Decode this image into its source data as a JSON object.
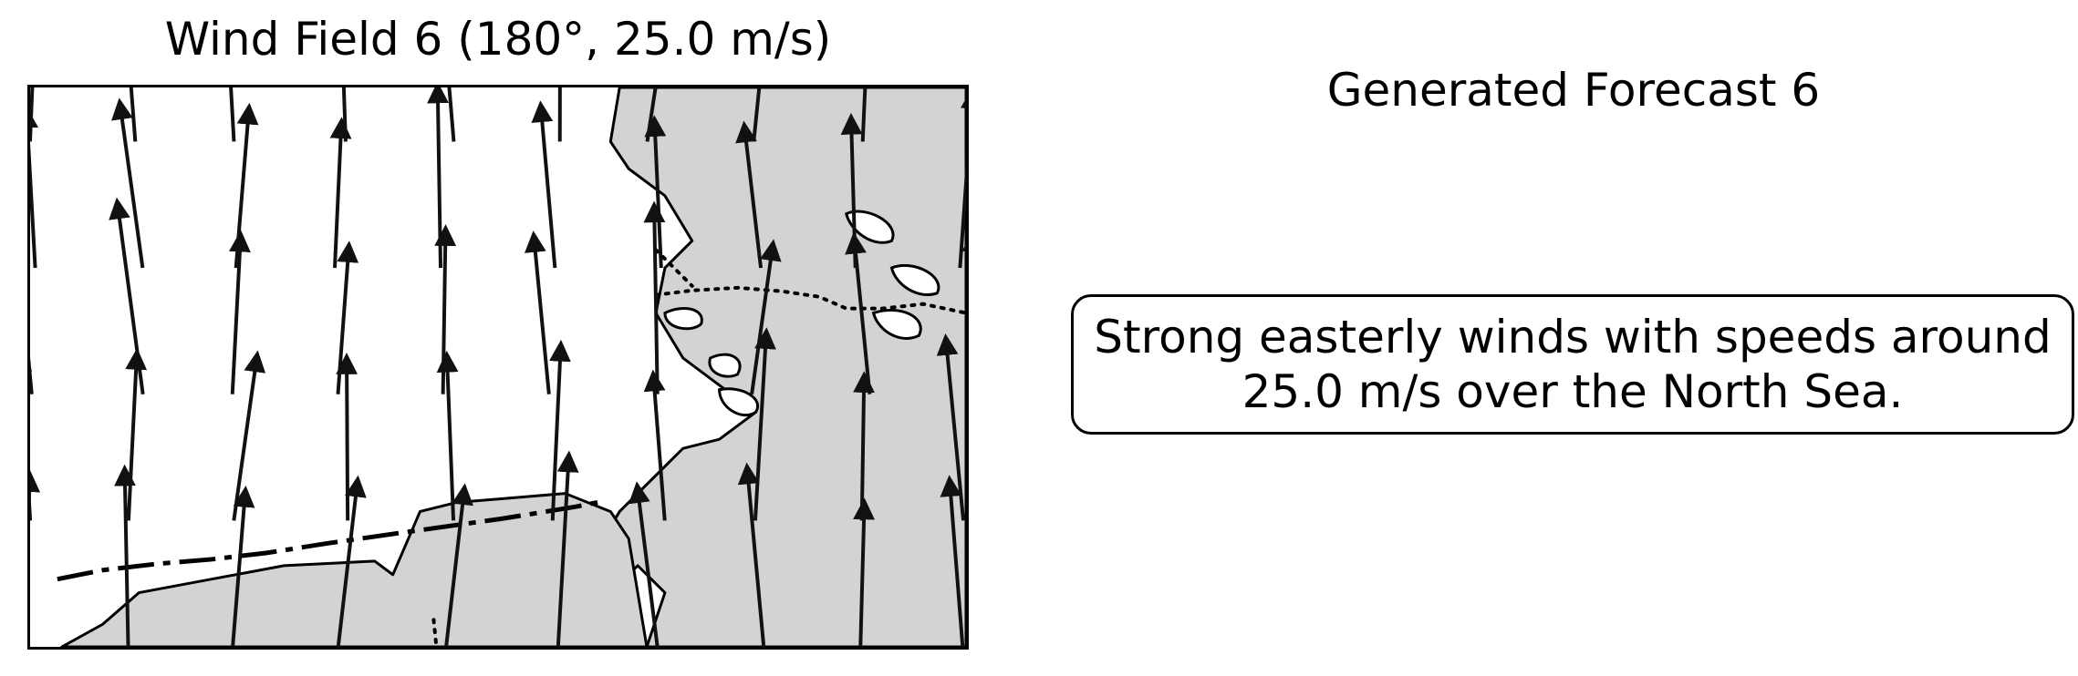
{
  "map": {
    "title": "Wind Field 6 (180°, 25.0 m/s)",
    "wind_direction_deg": 180,
    "wind_speed_ms": 25.0,
    "colors": {
      "land": "#d3d3d3",
      "sea": "#ffffff",
      "coastline": "#000000",
      "arrows": "#111111"
    }
  },
  "forecast": {
    "title": "Generated Forecast 6",
    "text": "Strong easterly winds with speeds around 25.0 m/s over the North Sea."
  }
}
